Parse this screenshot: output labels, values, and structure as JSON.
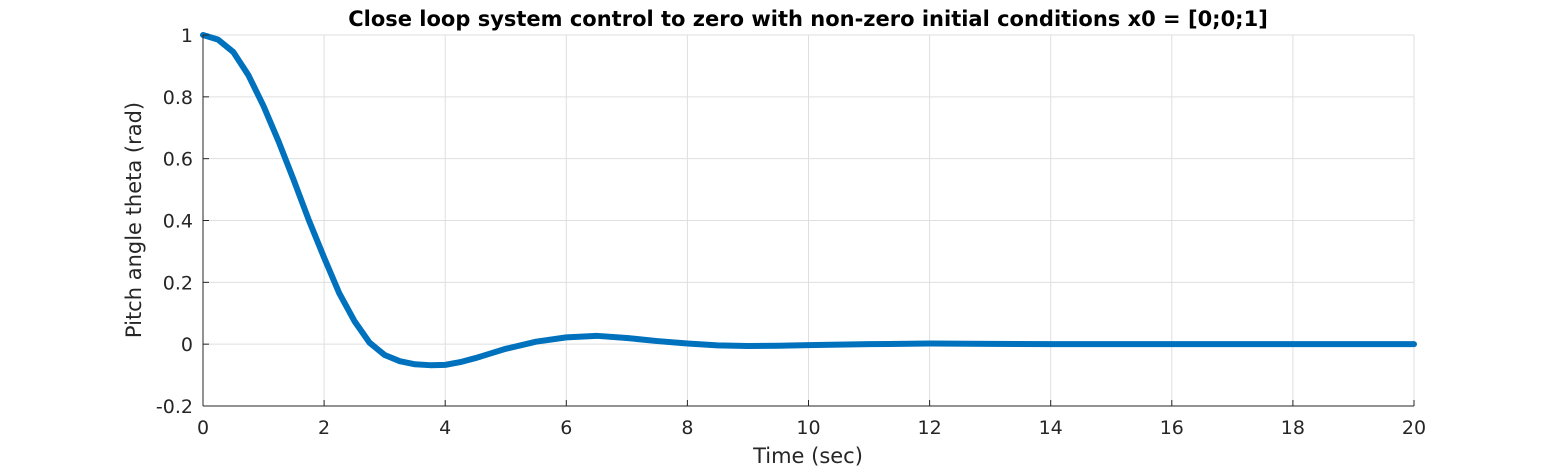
{
  "colors": {
    "series": "#0072bd",
    "axis": "#262626",
    "grid": "#dfdfdf",
    "background": "#ffffff"
  },
  "chart_data": {
    "type": "line",
    "title": "Close loop system control to zero with non-zero initial conditions x0 = [0;0;1]",
    "xlabel": "Time (sec)",
    "ylabel": "Pitch angle theta (rad)",
    "xlim": [
      0,
      20
    ],
    "ylim": [
      -0.2,
      1
    ],
    "xticks": [
      0,
      2,
      4,
      6,
      8,
      10,
      12,
      14,
      16,
      18,
      20
    ],
    "yticks": [
      -0.2,
      0,
      0.2,
      0.4,
      0.6,
      0.8,
      1
    ],
    "xtick_labels": [
      "0",
      "2",
      "4",
      "6",
      "8",
      "10",
      "12",
      "14",
      "16",
      "18",
      "20"
    ],
    "ytick_labels": [
      "-0.2",
      "0",
      "0.2",
      "0.4",
      "0.6",
      "0.8",
      "1"
    ],
    "grid": true,
    "legend": "none",
    "series": [
      {
        "x": [
          0,
          0.25,
          0.5,
          0.75,
          1.0,
          1.25,
          1.5,
          1.75,
          2.0,
          2.25,
          2.5,
          2.75,
          3.0,
          3.25,
          3.5,
          3.75,
          4.0,
          4.25,
          4.5,
          4.75,
          5.0,
          5.5,
          6.0,
          6.5,
          7.0,
          7.5,
          8.0,
          8.5,
          9.0,
          9.5,
          10.0,
          11.0,
          12.0,
          13.0,
          14.0,
          16.0,
          18.0,
          20.0
        ],
        "y": [
          1.0,
          0.985,
          0.945,
          0.87,
          0.77,
          0.655,
          0.53,
          0.4,
          0.28,
          0.165,
          0.075,
          0.005,
          -0.035,
          -0.055,
          -0.065,
          -0.068,
          -0.067,
          -0.058,
          -0.045,
          -0.03,
          -0.015,
          0.008,
          0.022,
          0.027,
          0.02,
          0.01,
          0.002,
          -0.004,
          -0.006,
          -0.005,
          -0.003,
          0.0,
          0.002,
          0.001,
          0.0,
          0.0,
          0.0,
          0.0
        ]
      }
    ]
  }
}
